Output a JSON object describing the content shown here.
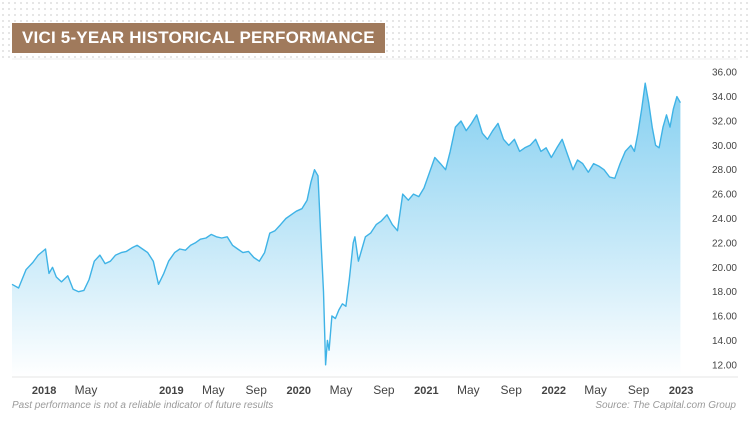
{
  "title": "VICI 5-YEAR HISTORICAL PERFORMANCE",
  "footer": {
    "disclaimer": "Past performance is not a reliable indicator of future results",
    "source": "Source: The Capital.com Group"
  },
  "colors": {
    "title_bg": "#a07a5c",
    "line": "#3fb3e6",
    "fill_top": "#7fcdf0",
    "fill_bottom": "#ffffff",
    "axis_text": "#444444"
  },
  "chart_data": {
    "type": "area",
    "title": "VICI 5-YEAR HISTORICAL PERFORMANCE",
    "xlabel": "",
    "ylabel": "",
    "ylim": [
      11,
      37
    ],
    "xlim": [
      "2017-10-01",
      "2023-01-15"
    ],
    "y_axis_position": "right",
    "grid": false,
    "x_ticks": [
      {
        "label": "2018",
        "date": "2018-01-01",
        "bold": true
      },
      {
        "label": "May",
        "date": "2018-05-01",
        "bold": false
      },
      {
        "label": "2019",
        "date": "2019-01-01",
        "bold": true
      },
      {
        "label": "May",
        "date": "2019-05-01",
        "bold": false
      },
      {
        "label": "Sep",
        "date": "2019-09-01",
        "bold": false
      },
      {
        "label": "2020",
        "date": "2020-01-01",
        "bold": true
      },
      {
        "label": "May",
        "date": "2020-05-01",
        "bold": false
      },
      {
        "label": "Sep",
        "date": "2020-09-01",
        "bold": false
      },
      {
        "label": "2021",
        "date": "2021-01-01",
        "bold": true
      },
      {
        "label": "May",
        "date": "2021-05-01",
        "bold": false
      },
      {
        "label": "Sep",
        "date": "2021-09-01",
        "bold": false
      },
      {
        "label": "2022",
        "date": "2022-01-01",
        "bold": true
      },
      {
        "label": "May",
        "date": "2022-05-01",
        "bold": false
      },
      {
        "label": "Sep",
        "date": "2022-09-01",
        "bold": false
      },
      {
        "label": "2023",
        "date": "2023-01-01",
        "bold": true
      }
    ],
    "y_ticks": [
      "12.00",
      "14.00",
      "16.00",
      "18.00",
      "20.00",
      "22.00",
      "24.00",
      "26.00",
      "28.00",
      "30.00",
      "32.00",
      "34.00",
      "36.00"
    ],
    "series": [
      {
        "x": [
          "2017-10-01",
          "2017-10-20",
          "2017-11-10",
          "2017-11-30",
          "2017-12-15",
          "2018-01-05",
          "2018-01-15",
          "2018-01-25",
          "2018-02-05",
          "2018-02-20",
          "2018-03-10",
          "2018-03-25",
          "2018-04-10",
          "2018-04-25",
          "2018-05-10",
          "2018-05-25",
          "2018-06-10",
          "2018-06-25",
          "2018-07-10",
          "2018-07-25",
          "2018-08-10",
          "2018-08-25",
          "2018-09-10",
          "2018-09-25",
          "2018-10-10",
          "2018-10-25",
          "2018-11-10",
          "2018-11-25",
          "2018-12-10",
          "2018-12-24",
          "2019-01-10",
          "2019-01-25",
          "2019-02-10",
          "2019-02-25",
          "2019-03-10",
          "2019-03-25",
          "2019-04-10",
          "2019-04-25",
          "2019-05-10",
          "2019-05-25",
          "2019-06-10",
          "2019-06-25",
          "2019-07-10",
          "2019-07-25",
          "2019-08-10",
          "2019-08-25",
          "2019-09-10",
          "2019-09-25",
          "2019-10-10",
          "2019-10-25",
          "2019-11-10",
          "2019-11-25",
          "2019-12-10",
          "2019-12-25",
          "2020-01-10",
          "2020-01-25",
          "2020-02-05",
          "2020-02-15",
          "2020-02-25",
          "2020-03-05",
          "2020-03-12",
          "2020-03-18",
          "2020-03-23",
          "2020-03-28",
          "2020-04-05",
          "2020-04-15",
          "2020-04-25",
          "2020-05-05",
          "2020-05-15",
          "2020-05-25",
          "2020-06-05",
          "2020-06-10",
          "2020-06-20",
          "2020-06-30",
          "2020-07-10",
          "2020-07-25",
          "2020-08-10",
          "2020-08-25",
          "2020-09-10",
          "2020-09-25",
          "2020-10-10",
          "2020-10-25",
          "2020-11-10",
          "2020-11-25",
          "2020-12-10",
          "2020-12-25",
          "2021-01-10",
          "2021-01-25",
          "2021-02-10",
          "2021-02-25",
          "2021-03-10",
          "2021-03-25",
          "2021-04-10",
          "2021-04-25",
          "2021-05-10",
          "2021-05-25",
          "2021-06-10",
          "2021-06-25",
          "2021-07-10",
          "2021-07-25",
          "2021-08-10",
          "2021-08-25",
          "2021-09-10",
          "2021-09-25",
          "2021-10-10",
          "2021-10-25",
          "2021-11-10",
          "2021-11-25",
          "2021-12-10",
          "2021-12-25",
          "2022-01-10",
          "2022-01-25",
          "2022-02-10",
          "2022-02-25",
          "2022-03-10",
          "2022-03-25",
          "2022-04-10",
          "2022-04-25",
          "2022-05-10",
          "2022-05-25",
          "2022-06-10",
          "2022-06-25",
          "2022-07-10",
          "2022-07-25",
          "2022-08-10",
          "2022-08-20",
          "2022-08-30",
          "2022-09-10",
          "2022-09-20",
          "2022-09-30",
          "2022-10-10",
          "2022-10-20",
          "2022-10-30",
          "2022-11-10",
          "2022-11-20",
          "2022-11-30",
          "2022-12-10",
          "2022-12-20",
          "2022-12-30"
        ],
        "values": [
          18.6,
          18.3,
          19.8,
          20.4,
          21.0,
          21.5,
          19.5,
          20.0,
          19.2,
          18.8,
          19.3,
          18.2,
          18.0,
          18.1,
          19.0,
          20.5,
          21.0,
          20.3,
          20.5,
          21.0,
          21.2,
          21.3,
          21.6,
          21.8,
          21.5,
          21.2,
          20.5,
          18.6,
          19.5,
          20.5,
          21.2,
          21.5,
          21.4,
          21.8,
          22.0,
          22.3,
          22.4,
          22.7,
          22.5,
          22.4,
          22.5,
          21.8,
          21.5,
          21.2,
          21.3,
          20.8,
          20.5,
          21.2,
          22.8,
          23.0,
          23.5,
          24.0,
          24.3,
          24.6,
          24.8,
          25.5,
          27.0,
          28.0,
          27.5,
          22.0,
          18.0,
          12.0,
          14.0,
          13.2,
          16.0,
          15.8,
          16.5,
          17.0,
          16.8,
          19.0,
          22.0,
          22.5,
          20.5,
          21.5,
          22.5,
          22.8,
          23.5,
          23.8,
          24.3,
          23.5,
          23.0,
          26.0,
          25.5,
          26.0,
          25.8,
          26.5,
          27.8,
          29.0,
          28.5,
          28.0,
          29.5,
          31.5,
          32.0,
          31.2,
          31.8,
          32.5,
          31.0,
          30.5,
          31.2,
          31.8,
          30.5,
          30.0,
          30.5,
          29.5,
          29.8,
          30.0,
          30.5,
          29.5,
          29.8,
          29.0,
          29.8,
          30.5,
          29.2,
          28.0,
          28.8,
          28.5,
          27.8,
          28.5,
          28.3,
          28.0,
          27.4,
          27.3,
          28.5,
          29.5,
          30.0,
          29.5,
          31.0,
          33.0,
          35.1,
          33.5,
          31.5,
          30.0,
          29.8,
          31.5,
          32.5,
          31.5,
          33.0,
          34.0,
          33.5
        ]
      }
    ]
  }
}
